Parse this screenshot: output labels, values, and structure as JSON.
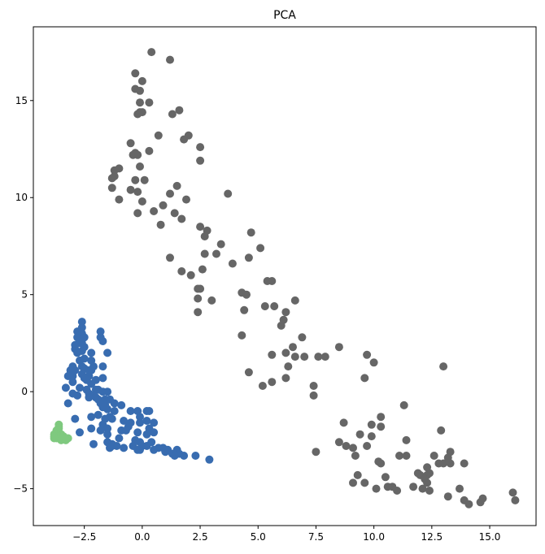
{
  "chart_data": {
    "type": "scatter",
    "title": "PCA",
    "xlabel": "",
    "ylabel": "",
    "xlim": [
      -4.7,
      17.0
    ],
    "ylim": [
      -6.9,
      18.8
    ],
    "xticks": [
      -2.5,
      0.0,
      2.5,
      5.0,
      7.5,
      10.0,
      12.5,
      15.0
    ],
    "xtick_labels": [
      "−2.5",
      "0.0",
      "2.5",
      "5.0",
      "7.5",
      "10.0",
      "12.5",
      "15.0"
    ],
    "yticks": [
      -5,
      0,
      5,
      10,
      15
    ],
    "ytick_labels": [
      "−5",
      "0",
      "5",
      "10",
      "15"
    ],
    "grid": false,
    "legend": "none",
    "series": [
      {
        "color": "#666666",
        "points": [
          [
            0.4,
            17.5
          ],
          [
            1.2,
            17.1
          ],
          [
            -0.3,
            16.4
          ],
          [
            0.0,
            16.0
          ],
          [
            -0.3,
            15.6
          ],
          [
            -0.1,
            15.5
          ],
          [
            -0.1,
            14.9
          ],
          [
            0.3,
            14.9
          ],
          [
            1.6,
            14.5
          ],
          [
            1.3,
            14.3
          ],
          [
            -0.1,
            14.4
          ],
          [
            0.0,
            14.4
          ],
          [
            -0.2,
            14.3
          ],
          [
            2.0,
            13.2
          ],
          [
            0.7,
            13.2
          ],
          [
            1.8,
            13.0
          ],
          [
            2.5,
            12.6
          ],
          [
            -0.5,
            12.8
          ],
          [
            0.3,
            12.4
          ],
          [
            -0.3,
            12.3
          ],
          [
            -0.4,
            12.2
          ],
          [
            -0.2,
            12.2
          ],
          [
            2.5,
            11.9
          ],
          [
            -0.1,
            11.6
          ],
          [
            -1.0,
            11.5
          ],
          [
            -1.2,
            11.4
          ],
          [
            -1.2,
            11.1
          ],
          [
            -1.3,
            11.0
          ],
          [
            0.1,
            10.9
          ],
          [
            -0.3,
            10.9
          ],
          [
            1.5,
            10.6
          ],
          [
            -1.3,
            10.5
          ],
          [
            -0.5,
            10.4
          ],
          [
            -0.2,
            10.3
          ],
          [
            1.2,
            10.2
          ],
          [
            3.7,
            10.2
          ],
          [
            -1.0,
            9.9
          ],
          [
            0.0,
            9.8
          ],
          [
            1.9,
            9.9
          ],
          [
            0.9,
            9.6
          ],
          [
            -0.2,
            9.2
          ],
          [
            0.5,
            9.3
          ],
          [
            1.4,
            9.2
          ],
          [
            1.7,
            8.9
          ],
          [
            0.8,
            8.6
          ],
          [
            2.5,
            8.5
          ],
          [
            2.8,
            8.3
          ],
          [
            2.7,
            8.0
          ],
          [
            4.7,
            8.2
          ],
          [
            3.4,
            7.6
          ],
          [
            5.1,
            7.4
          ],
          [
            2.7,
            7.1
          ],
          [
            3.2,
            7.1
          ],
          [
            4.6,
            6.9
          ],
          [
            1.2,
            6.9
          ],
          [
            2.6,
            6.3
          ],
          [
            3.9,
            6.6
          ],
          [
            1.7,
            6.2
          ],
          [
            2.1,
            6.0
          ],
          [
            5.4,
            5.7
          ],
          [
            5.6,
            5.7
          ],
          [
            2.5,
            5.3
          ],
          [
            2.4,
            5.3
          ],
          [
            4.3,
            5.1
          ],
          [
            4.5,
            5.0
          ],
          [
            6.6,
            4.7
          ],
          [
            2.4,
            4.8
          ],
          [
            3.0,
            4.7
          ],
          [
            5.3,
            4.4
          ],
          [
            5.7,
            4.4
          ],
          [
            6.2,
            4.1
          ],
          [
            2.4,
            4.1
          ],
          [
            4.4,
            4.2
          ],
          [
            6.1,
            3.7
          ],
          [
            6.0,
            3.4
          ],
          [
            4.3,
            2.9
          ],
          [
            6.9,
            2.8
          ],
          [
            8.5,
            2.3
          ],
          [
            6.5,
            2.3
          ],
          [
            6.2,
            2.0
          ],
          [
            6.6,
            1.8
          ],
          [
            7.0,
            1.8
          ],
          [
            7.6,
            1.8
          ],
          [
            9.7,
            1.9
          ],
          [
            7.9,
            1.8
          ],
          [
            10.0,
            1.5
          ],
          [
            5.6,
            1.9
          ],
          [
            6.3,
            1.3
          ],
          [
            13.0,
            1.3
          ],
          [
            4.6,
            1.0
          ],
          [
            6.2,
            0.7
          ],
          [
            9.6,
            0.7
          ],
          [
            5.6,
            0.5
          ],
          [
            5.2,
            0.3
          ],
          [
            7.4,
            0.3
          ],
          [
            7.4,
            -0.2
          ],
          [
            11.3,
            -0.7
          ],
          [
            10.3,
            -1.3
          ],
          [
            8.7,
            -1.6
          ],
          [
            9.9,
            -1.7
          ],
          [
            10.3,
            -1.8
          ],
          [
            12.9,
            -2.0
          ],
          [
            9.4,
            -2.2
          ],
          [
            9.9,
            -2.3
          ],
          [
            11.4,
            -2.5
          ],
          [
            8.5,
            -2.6
          ],
          [
            8.8,
            -2.8
          ],
          [
            9.1,
            -2.9
          ],
          [
            9.7,
            -2.8
          ],
          [
            7.5,
            -3.1
          ],
          [
            9.2,
            -3.3
          ],
          [
            11.1,
            -3.3
          ],
          [
            11.4,
            -3.3
          ],
          [
            12.6,
            -3.3
          ],
          [
            13.3,
            -3.1
          ],
          [
            13.2,
            -3.4
          ],
          [
            12.8,
            -3.7
          ],
          [
            13.0,
            -3.7
          ],
          [
            13.3,
            -3.7
          ],
          [
            10.3,
            -3.7
          ],
          [
            10.2,
            -3.6
          ],
          [
            12.3,
            -3.9
          ],
          [
            13.9,
            -3.7
          ],
          [
            11.9,
            -4.2
          ],
          [
            12.0,
            -4.3
          ],
          [
            12.3,
            -4.3
          ],
          [
            12.4,
            -4.2
          ],
          [
            9.3,
            -4.3
          ],
          [
            10.5,
            -4.4
          ],
          [
            12.2,
            -4.5
          ],
          [
            12.3,
            -4.7
          ],
          [
            9.1,
            -4.7
          ],
          [
            9.6,
            -4.7
          ],
          [
            11.7,
            -4.9
          ],
          [
            10.6,
            -4.9
          ],
          [
            10.8,
            -4.9
          ],
          [
            10.1,
            -5.0
          ],
          [
            11.0,
            -5.1
          ],
          [
            12.1,
            -5.0
          ],
          [
            12.4,
            -5.1
          ],
          [
            13.7,
            -5.0
          ],
          [
            16.0,
            -5.2
          ],
          [
            13.2,
            -5.4
          ],
          [
            14.7,
            -5.5
          ],
          [
            16.1,
            -5.6
          ],
          [
            13.9,
            -5.6
          ],
          [
            14.6,
            -5.7
          ],
          [
            14.1,
            -5.8
          ]
        ]
      },
      {
        "color": "#386cb0",
        "points": [
          [
            -2.6,
            3.6
          ],
          [
            -2.6,
            3.3
          ],
          [
            -2.8,
            3.1
          ],
          [
            -2.6,
            3.0
          ],
          [
            -1.8,
            3.1
          ],
          [
            -2.8,
            2.8
          ],
          [
            -2.5,
            2.8
          ],
          [
            -1.8,
            2.8
          ],
          [
            -1.7,
            2.6
          ],
          [
            -2.7,
            2.5
          ],
          [
            -2.6,
            2.5
          ],
          [
            -2.9,
            2.4
          ],
          [
            -2.5,
            2.3
          ],
          [
            -2.9,
            2.2
          ],
          [
            -2.6,
            2.1
          ],
          [
            -2.2,
            2.0
          ],
          [
            -2.8,
            2.0
          ],
          [
            -1.5,
            2.0
          ],
          [
            -2.5,
            1.7
          ],
          [
            -2.7,
            1.6
          ],
          [
            -2.2,
            1.6
          ],
          [
            -3.0,
            1.3
          ],
          [
            -2.6,
            1.3
          ],
          [
            -2.1,
            1.3
          ],
          [
            -1.7,
            1.3
          ],
          [
            -3.1,
            1.1
          ],
          [
            -2.9,
            1.1
          ],
          [
            -2.5,
            1.2
          ],
          [
            -2.3,
            1.1
          ],
          [
            -2.2,
            1.1
          ],
          [
            -3.0,
            0.8
          ],
          [
            -2.6,
            0.9
          ],
          [
            -2.3,
            0.8
          ],
          [
            -3.2,
            0.8
          ],
          [
            -2.5,
            0.7
          ],
          [
            -2.4,
            0.6
          ],
          [
            -2.0,
            0.6
          ],
          [
            -1.7,
            0.7
          ],
          [
            -3.0,
            0.5
          ],
          [
            -2.2,
            0.4
          ],
          [
            -3.3,
            0.2
          ],
          [
            -2.7,
            0.2
          ],
          [
            -2.4,
            0.1
          ],
          [
            -2.0,
            0.1
          ],
          [
            -1.9,
            0.1
          ],
          [
            -1.7,
            0.0
          ],
          [
            -1.5,
            0.0
          ],
          [
            -2.1,
            -0.2
          ],
          [
            -2.3,
            -0.1
          ],
          [
            -3.0,
            -0.1
          ],
          [
            -2.8,
            -0.2
          ],
          [
            -2.3,
            -0.3
          ],
          [
            -2.0,
            -0.3
          ],
          [
            -1.9,
            -0.4
          ],
          [
            -1.6,
            -0.4
          ],
          [
            -1.4,
            -0.4
          ],
          [
            -1.8,
            -0.6
          ],
          [
            -1.6,
            -0.7
          ],
          [
            -1.2,
            -0.6
          ],
          [
            -3.2,
            -0.6
          ],
          [
            -0.9,
            -0.7
          ],
          [
            -1.5,
            -0.9
          ],
          [
            -1.2,
            -1.0
          ],
          [
            -1.7,
            -0.8
          ],
          [
            -0.5,
            -1.0
          ],
          [
            -0.2,
            -1.0
          ],
          [
            0.2,
            -1.0
          ],
          [
            0.3,
            -1.0
          ],
          [
            -1.9,
            -1.2
          ],
          [
            -1.4,
            -1.3
          ],
          [
            -0.1,
            -1.3
          ],
          [
            -2.2,
            -1.3
          ],
          [
            -1.6,
            -1.4
          ],
          [
            -1.3,
            -1.4
          ],
          [
            -0.8,
            -1.5
          ],
          [
            -2.9,
            -1.4
          ],
          [
            -0.5,
            -1.6
          ],
          [
            -0.6,
            -1.8
          ],
          [
            -0.1,
            -1.6
          ],
          [
            0.2,
            -1.5
          ],
          [
            -1.7,
            -1.7
          ],
          [
            -1.5,
            -1.9
          ],
          [
            0.5,
            -1.6
          ],
          [
            -0.9,
            -2.0
          ],
          [
            -0.7,
            -2.0
          ],
          [
            -2.2,
            -1.9
          ],
          [
            -1.8,
            -2.0
          ],
          [
            0.3,
            -1.9
          ],
          [
            -0.2,
            -2.1
          ],
          [
            0.2,
            -2.2
          ],
          [
            0.5,
            -2.1
          ],
          [
            -2.7,
            -2.1
          ],
          [
            -1.5,
            -2.2
          ],
          [
            -1.0,
            -2.4
          ],
          [
            -0.3,
            -2.5
          ],
          [
            -0.1,
            -2.6
          ],
          [
            0.4,
            -2.6
          ],
          [
            -1.5,
            -2.6
          ],
          [
            -1.3,
            -2.7
          ],
          [
            -2.1,
            -2.7
          ],
          [
            -0.4,
            -2.8
          ],
          [
            0.0,
            -2.8
          ],
          [
            0.2,
            -2.8
          ],
          [
            -1.1,
            -2.8
          ],
          [
            -0.8,
            -2.9
          ],
          [
            -0.1,
            -3.0
          ],
          [
            0.7,
            -2.9
          ],
          [
            0.9,
            -2.9
          ],
          [
            0.5,
            -3.0
          ],
          [
            -0.2,
            -3.0
          ],
          [
            -1.3,
            -2.8
          ],
          [
            -1.4,
            -2.9
          ],
          [
            1.1,
            -3.0
          ],
          [
            1.5,
            -3.0
          ],
          [
            1.6,
            -3.2
          ],
          [
            1.3,
            -3.2
          ],
          [
            1.0,
            -3.1
          ],
          [
            1.8,
            -3.3
          ],
          [
            2.3,
            -3.3
          ],
          [
            1.4,
            -3.3
          ],
          [
            2.9,
            -3.5
          ]
        ]
      },
      {
        "color": "#7fc97f",
        "points": [
          [
            -3.6,
            -1.7
          ],
          [
            -3.6,
            -1.8
          ],
          [
            -3.6,
            -1.9
          ],
          [
            -3.7,
            -2.0
          ],
          [
            -3.6,
            -2.1
          ],
          [
            -3.6,
            -2.2
          ],
          [
            -3.5,
            -2.2
          ],
          [
            -3.7,
            -2.2
          ],
          [
            -3.8,
            -2.2
          ],
          [
            -3.5,
            -2.3
          ],
          [
            -3.6,
            -2.3
          ],
          [
            -3.7,
            -2.3
          ],
          [
            -3.8,
            -2.3
          ],
          [
            -3.4,
            -2.3
          ],
          [
            -3.3,
            -2.4
          ],
          [
            -3.5,
            -2.4
          ],
          [
            -3.6,
            -2.4
          ],
          [
            -3.7,
            -2.4
          ],
          [
            -3.8,
            -2.4
          ],
          [
            -3.2,
            -2.4
          ],
          [
            -3.4,
            -2.4
          ],
          [
            -3.5,
            -2.5
          ],
          [
            -3.3,
            -2.5
          ]
        ]
      }
    ]
  }
}
